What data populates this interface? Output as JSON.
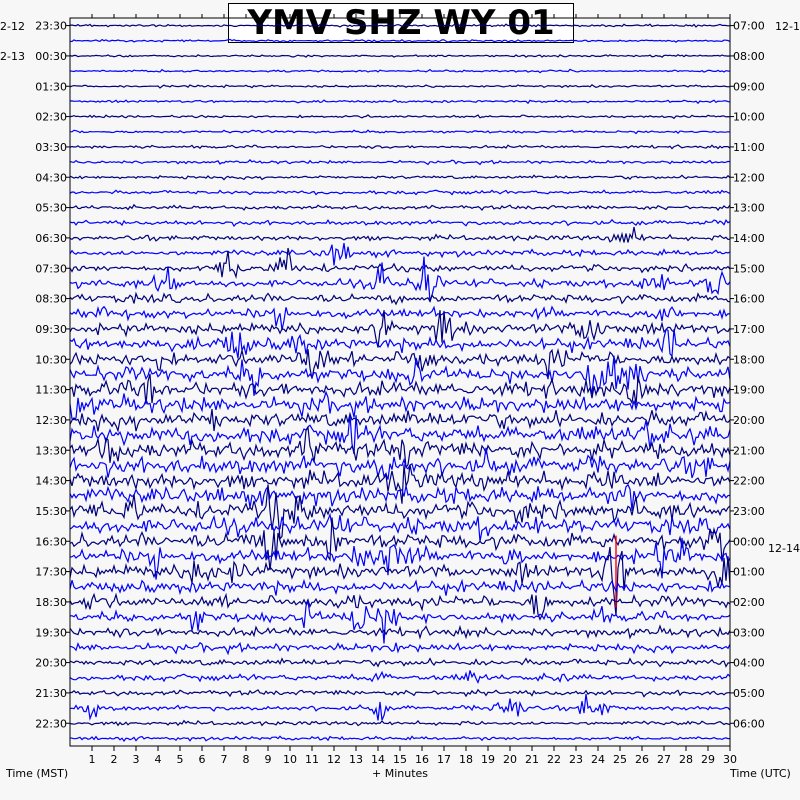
{
  "chart_data": {
    "type": "helicorder",
    "title": "YMV SHZ WY 01",
    "xlabel": "+ Minutes",
    "left_axis_title": "Time (MST)",
    "right_axis_title": "Time (UTC)",
    "x_ticks": [
      "1",
      "2",
      "3",
      "4",
      "5",
      "6",
      "7",
      "8",
      "9",
      "10",
      "11",
      "12",
      "13",
      "14",
      "15",
      "16",
      "17",
      "18",
      "19",
      "20",
      "21",
      "22",
      "23",
      "24",
      "25",
      "26",
      "27",
      "28",
      "29",
      "30"
    ],
    "left_date_labels": [
      "2-12",
      "2-13"
    ],
    "right_date_labels": [
      "12-1",
      "12-14"
    ],
    "left_time_labels": [
      "23:30",
      "00:30",
      "01:30",
      "02:30",
      "03:30",
      "04:30",
      "05:30",
      "06:30",
      "07:30",
      "08:30",
      "09:30",
      "10:30",
      "11:30",
      "12:30",
      "13:30",
      "14:30",
      "15:30",
      "16:30",
      "17:30",
      "18:30",
      "19:30",
      "20:30",
      "21:30",
      "22:30"
    ],
    "right_time_labels": [
      "07:00",
      "08:00",
      "09:00",
      "10:00",
      "11:00",
      "12:00",
      "13:00",
      "14:00",
      "15:00",
      "16:00",
      "17:00",
      "18:00",
      "19:00",
      "20:00",
      "21:00",
      "22:00",
      "23:00",
      "00:00",
      "01:00",
      "02:00",
      "03:00",
      "04:00",
      "05:00",
      "06:00"
    ],
    "minutes_per_line": 30,
    "trace_colors": [
      "#00007a",
      "#0000ff"
    ],
    "clip_color": "#ff0000"
  }
}
